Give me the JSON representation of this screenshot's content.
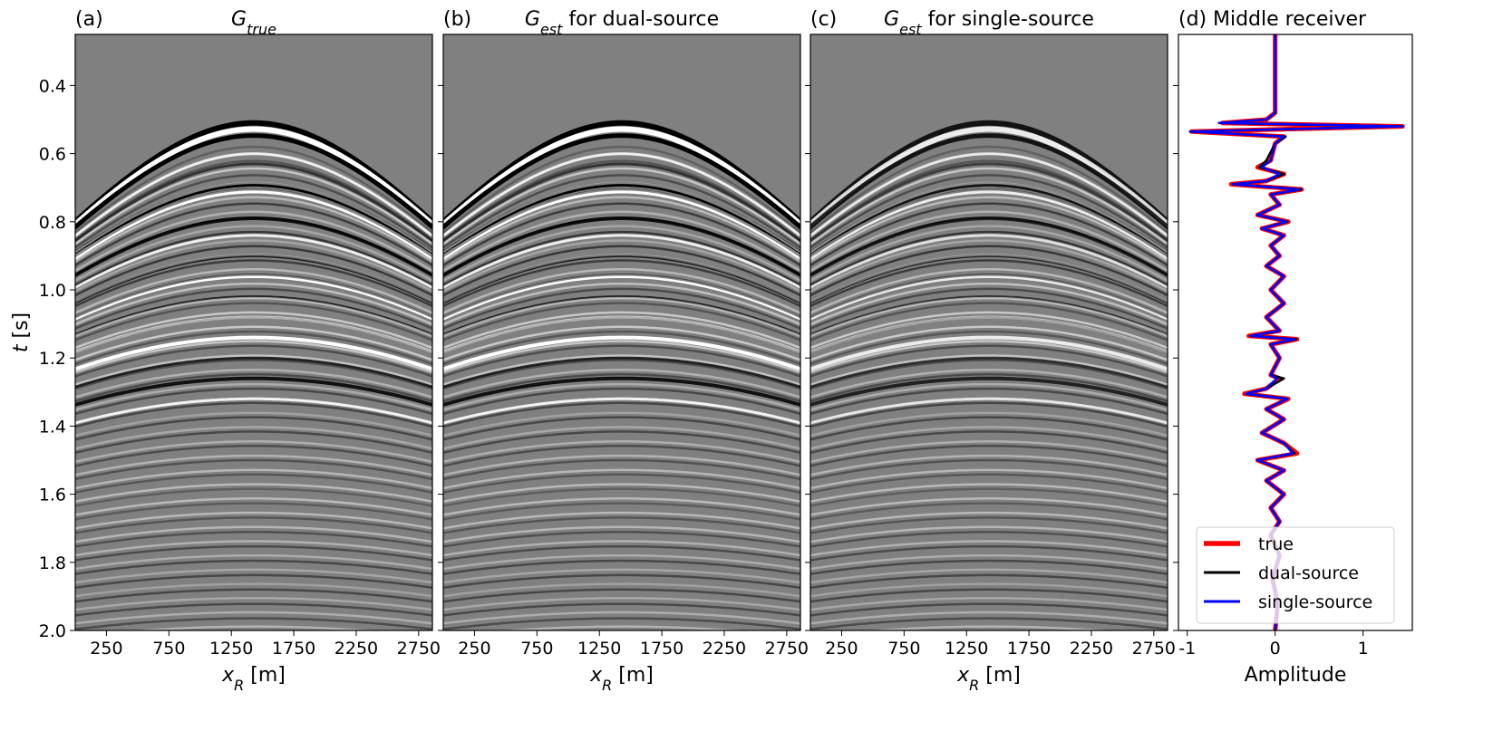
{
  "chart_data": [
    {
      "type": "image",
      "panel": "(a)",
      "title_symbol": "G",
      "title_subscript": "true",
      "xlabel_symbol": "x",
      "xlabel_subscript": "R",
      "xlabel_rest": " [m]",
      "ylabel_symbol": "t",
      "ylabel_rest": " [s]",
      "xlim": [
        0,
        2860
      ],
      "xticks": [
        250,
        750,
        1250,
        1750,
        2250,
        2750
      ],
      "ylim": [
        2.0,
        0.25
      ],
      "yticks": [
        {
          "value": 0.4,
          "label": "0.4"
        },
        {
          "value": 0.6,
          "label": "0.6"
        },
        {
          "value": 0.8,
          "label": "0.8"
        },
        {
          "value": 1.0,
          "label": "1.0"
        },
        {
          "value": 1.2,
          "label": "1.2"
        },
        {
          "value": 1.4,
          "label": "1.4"
        },
        {
          "value": 1.6,
          "label": "1.6"
        },
        {
          "value": 1.8,
          "label": "1.8"
        },
        {
          "value": 2.0,
          "label": "2.0"
        }
      ]
    },
    {
      "type": "image",
      "panel": "(b)",
      "title_symbol": "G",
      "title_subscript": "est",
      "title_rest": " for dual-source",
      "xlabel_symbol": "x",
      "xlabel_subscript": "R",
      "xlabel_rest": " [m]",
      "xlim": [
        0,
        2860
      ],
      "xticks": [
        250,
        750,
        1250,
        1750,
        2250,
        2750
      ],
      "ylim": [
        2.0,
        0.25
      ]
    },
    {
      "type": "image",
      "panel": "(c)",
      "title_symbol": "G",
      "title_subscript": "est",
      "title_rest": " for single-source",
      "xlabel_symbol": "x",
      "xlabel_subscript": "R",
      "xlabel_rest": " [m]",
      "xlim": [
        0,
        2860
      ],
      "xticks": [
        250,
        750,
        1250,
        1750,
        2250,
        2750
      ],
      "ylim": [
        2.0,
        0.25
      ]
    },
    {
      "type": "trace",
      "panel": "(d)",
      "title": "Middle receiver",
      "xlabel": "Amplitude",
      "xlim": [
        -1.1,
        1.56
      ],
      "xticks": [
        -1,
        0,
        1
      ],
      "ylim": [
        2.0,
        0.25
      ],
      "legend": "lower center",
      "x": [
        0.25,
        0.48,
        0.5,
        0.51,
        0.52,
        0.535,
        0.55,
        0.57,
        0.62,
        0.64,
        0.66,
        0.68,
        0.69,
        0.705,
        0.72,
        0.75,
        0.78,
        0.8,
        0.82,
        0.84,
        0.87,
        0.9,
        0.93,
        0.96,
        1.0,
        1.04,
        1.08,
        1.12,
        1.135,
        1.145,
        1.16,
        1.2,
        1.25,
        1.26,
        1.29,
        1.305,
        1.32,
        1.35,
        1.38,
        1.42,
        1.45,
        1.48,
        1.5,
        1.53,
        1.56,
        1.6,
        1.64,
        1.68,
        1.72,
        1.78,
        1.85,
        1.92,
        2.0
      ],
      "series": [
        {
          "name": "true",
          "color": "#ff0000",
          "width": 5,
          "values": [
            0,
            0,
            -0.1,
            -0.6,
            1.45,
            -0.95,
            0.1,
            0,
            -0.05,
            -0.2,
            0.1,
            -0.1,
            -0.5,
            0.3,
            -0.05,
            0.05,
            -0.2,
            0.15,
            -0.15,
            0.1,
            -0.05,
            0.05,
            -0.1,
            0.1,
            -0.05,
            0.1,
            -0.1,
            0.05,
            -0.3,
            0.25,
            -0.05,
            0.05,
            -0.05,
            0.05,
            -0.1,
            -0.35,
            0.15,
            -0.1,
            0.1,
            -0.15,
            0.1,
            0.25,
            -0.2,
            0.1,
            -0.1,
            0.1,
            -0.05,
            0.05,
            -0.05,
            0.05,
            -0.03,
            0.03,
            0
          ]
        },
        {
          "name": "dual-source",
          "color": "#000000",
          "width": 2.5,
          "values": [
            0,
            0,
            -0.1,
            -0.58,
            1.42,
            -0.95,
            0.12,
            0,
            -0.1,
            -0.18,
            0.1,
            -0.1,
            -0.48,
            0.3,
            -0.05,
            0.05,
            -0.2,
            0.14,
            -0.15,
            0.1,
            -0.05,
            0.05,
            -0.1,
            0.1,
            -0.05,
            0.1,
            -0.1,
            0.05,
            -0.28,
            0.24,
            -0.05,
            0.05,
            -0.05,
            0.1,
            -0.1,
            -0.33,
            0.14,
            -0.1,
            0.1,
            -0.15,
            0.1,
            0.22,
            -0.2,
            0.1,
            -0.1,
            0.1,
            -0.05,
            0.05,
            -0.05,
            0.05,
            -0.03,
            0.03,
            0
          ]
        },
        {
          "name": "single-source",
          "color": "#0000ff",
          "width": 2.5,
          "values": [
            0,
            0,
            -0.1,
            -0.64,
            1.45,
            -0.97,
            0.1,
            0,
            -0.05,
            -0.15,
            0.05,
            -0.1,
            -0.48,
            0.28,
            -0.05,
            0.05,
            -0.2,
            0.13,
            -0.15,
            0.1,
            -0.05,
            0.05,
            -0.1,
            0.1,
            -0.05,
            0.1,
            -0.1,
            0.05,
            -0.28,
            0.22,
            -0.05,
            0.05,
            -0.05,
            0.02,
            -0.1,
            -0.33,
            0.14,
            -0.1,
            0.1,
            -0.15,
            0.1,
            0.2,
            -0.2,
            0.1,
            -0.1,
            0.1,
            -0.05,
            0.05,
            -0.05,
            0.05,
            -0.03,
            0.03,
            0
          ]
        }
      ]
    }
  ]
}
